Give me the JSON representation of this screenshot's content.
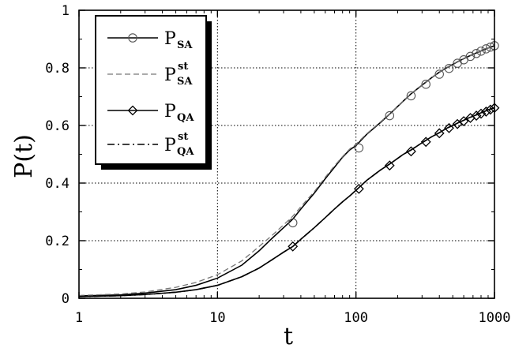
{
  "chart_data": {
    "type": "line",
    "xlabel": "t",
    "ylabel": "P(t)",
    "xscale": "log",
    "xlim": [
      1,
      1000
    ],
    "ylim": [
      0,
      1
    ],
    "grid": true,
    "legend_position": "top-left",
    "x_tick_labels": [
      "1",
      "10",
      "100",
      "1000"
    ],
    "x_ticks": [
      1,
      10,
      100,
      1000
    ],
    "y_tick_labels": [
      "0",
      "0.2",
      "0.4",
      "0.6",
      "0.8",
      "1"
    ],
    "y_ticks": [
      0,
      0.2,
      0.4,
      0.6,
      0.8,
      1
    ],
    "series": [
      {
        "name": "P_SA",
        "label_main": "P",
        "label_sub": "SA",
        "label_sup": "",
        "line": "solid",
        "marker": "circle",
        "color": "#000000",
        "x": [
          1,
          2,
          3,
          5,
          7,
          10,
          15,
          20,
          25,
          30,
          35,
          40,
          50,
          60,
          70,
          80,
          90,
          100,
          120,
          150,
          180,
          220,
          250,
          300,
          350,
          400,
          450,
          500,
          550,
          600,
          650,
          700,
          750,
          800,
          850,
          900,
          950,
          1000
        ],
        "y": [
          0.008,
          0.012,
          0.018,
          0.03,
          0.045,
          0.07,
          0.115,
          0.165,
          0.21,
          0.245,
          0.275,
          0.31,
          0.365,
          0.415,
          0.455,
          0.49,
          0.515,
          0.53,
          0.57,
          0.61,
          0.645,
          0.685,
          0.71,
          0.74,
          0.765,
          0.785,
          0.8,
          0.812,
          0.823,
          0.832,
          0.84,
          0.847,
          0.853,
          0.859,
          0.864,
          0.869,
          0.873,
          0.877
        ],
        "marker_x": [
          35,
          105,
          175,
          250,
          320,
          400,
          470,
          540,
          600,
          670,
          740,
          800,
          870,
          935,
          1000
        ],
        "marker_y": [
          0.262,
          0.522,
          0.634,
          0.703,
          0.743,
          0.778,
          0.798,
          0.816,
          0.828,
          0.84,
          0.85,
          0.858,
          0.866,
          0.872,
          0.877
        ]
      },
      {
        "name": "P_SA^st",
        "label_main": "P",
        "label_sub": "SA",
        "label_sup": "st",
        "line": "dashed",
        "marker": "none",
        "color": "#777777",
        "x": [
          1,
          2,
          3,
          5,
          7,
          10,
          15,
          20,
          25,
          30,
          35,
          40,
          50,
          60,
          70,
          80,
          90,
          100,
          120,
          150,
          180,
          220,
          250,
          300,
          350,
          400,
          450,
          500,
          550,
          600,
          650,
          700,
          750,
          800,
          850,
          900,
          950,
          1000
        ],
        "y": [
          0.01,
          0.015,
          0.022,
          0.038,
          0.055,
          0.082,
          0.13,
          0.18,
          0.22,
          0.255,
          0.285,
          0.318,
          0.37,
          0.42,
          0.46,
          0.492,
          0.518,
          0.535,
          0.572,
          0.612,
          0.646,
          0.686,
          0.711,
          0.741,
          0.766,
          0.786,
          0.801,
          0.813,
          0.824,
          0.833,
          0.841,
          0.848,
          0.854,
          0.86,
          0.865,
          0.869,
          0.873,
          0.877
        ]
      },
      {
        "name": "P_QA",
        "label_main": "P",
        "label_sub": "QA",
        "label_sup": "",
        "line": "solid",
        "marker": "diamond",
        "color": "#000000",
        "x": [
          1,
          2,
          3,
          5,
          7,
          10,
          15,
          20,
          25,
          30,
          35,
          40,
          50,
          60,
          70,
          80,
          90,
          100,
          120,
          150,
          180,
          220,
          250,
          300,
          350,
          400,
          450,
          500,
          550,
          600,
          650,
          700,
          750,
          800,
          850,
          900,
          950,
          1000
        ],
        "y": [
          0.006,
          0.009,
          0.013,
          0.021,
          0.03,
          0.045,
          0.075,
          0.105,
          0.135,
          0.16,
          0.18,
          0.205,
          0.245,
          0.28,
          0.31,
          0.335,
          0.355,
          0.375,
          0.41,
          0.445,
          0.47,
          0.5,
          0.515,
          0.54,
          0.56,
          0.575,
          0.59,
          0.6,
          0.61,
          0.618,
          0.626,
          0.632,
          0.638,
          0.644,
          0.649,
          0.654,
          0.658,
          0.662
        ],
        "marker_x": [
          35,
          105,
          175,
          250,
          320,
          400,
          470,
          540,
          600,
          670,
          740,
          800,
          870,
          935,
          1000
        ],
        "marker_y": [
          0.18,
          0.38,
          0.461,
          0.51,
          0.543,
          0.573,
          0.591,
          0.605,
          0.615,
          0.626,
          0.634,
          0.641,
          0.648,
          0.655,
          0.661
        ]
      },
      {
        "name": "P_QA^st",
        "label_main": "P",
        "label_sub": "QA",
        "label_sup": "st",
        "line": "dashdot",
        "marker": "none",
        "color": "#000000",
        "x": [
          1,
          2,
          3,
          5,
          7,
          10,
          15,
          20,
          25,
          30,
          35,
          40,
          50,
          60,
          70,
          80,
          90,
          100,
          120,
          150,
          180,
          220,
          250,
          300,
          350,
          400,
          450,
          500,
          550,
          600,
          650,
          700,
          750,
          800,
          850,
          900,
          950,
          1000
        ],
        "y": [
          0.006,
          0.009,
          0.013,
          0.021,
          0.03,
          0.045,
          0.075,
          0.105,
          0.135,
          0.16,
          0.18,
          0.205,
          0.245,
          0.28,
          0.31,
          0.335,
          0.355,
          0.375,
          0.41,
          0.445,
          0.47,
          0.5,
          0.515,
          0.54,
          0.56,
          0.575,
          0.59,
          0.6,
          0.61,
          0.618,
          0.626,
          0.632,
          0.638,
          0.644,
          0.649,
          0.654,
          0.658,
          0.662
        ]
      }
    ]
  }
}
